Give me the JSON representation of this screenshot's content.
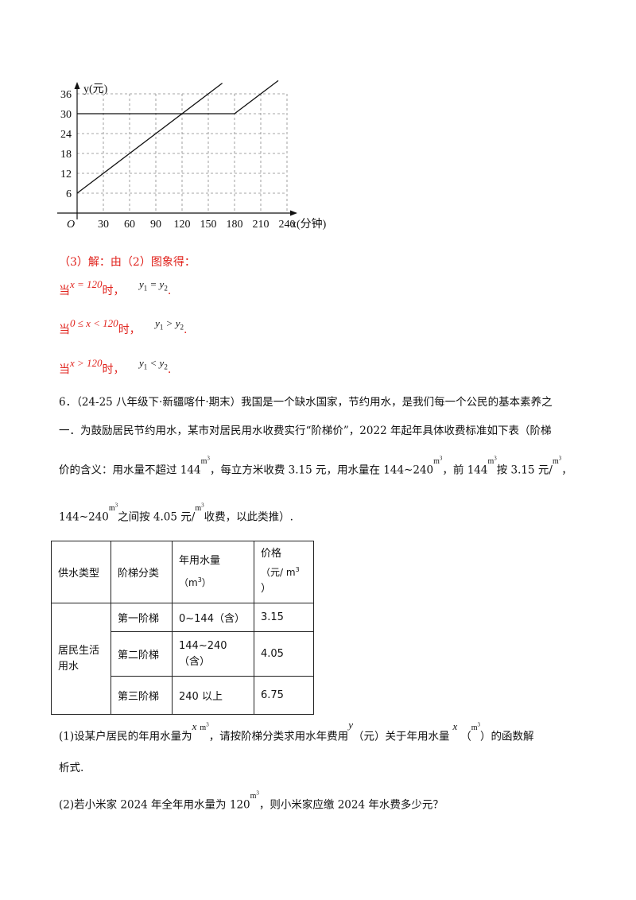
{
  "chart_data": {
    "type": "line",
    "ylabel": "y(元)",
    "xlabel": "x(分钟)",
    "origin_label": "O",
    "x_ticks": [
      30,
      60,
      90,
      120,
      150,
      180,
      210,
      240
    ],
    "y_ticks": [
      6,
      12,
      18,
      24,
      30,
      36
    ],
    "xlim": [
      0,
      240
    ],
    "ylim": [
      0,
      36
    ],
    "grid": true,
    "series": [
      {
        "name": "y2",
        "name_base": "y",
        "name_sub": "2",
        "x": [
          0,
          166
        ],
        "y": [
          6,
          39.2
        ]
      },
      {
        "name": "y1",
        "name_base": "y",
        "name_sub": "1",
        "x": [
          0,
          180,
          230
        ],
        "y": [
          30,
          30,
          40
        ]
      }
    ]
  },
  "solution": {
    "heading": "（3）解：由（2）图象得：",
    "dang": "当",
    "shi": "时，",
    "period": ".",
    "cases": [
      {
        "cond": "x = 120",
        "result": "y1 = y2"
      },
      {
        "cond": "0 ≤ x < 120",
        "result": "y1 > y2"
      },
      {
        "cond": "x > 120",
        "result": "y1 < y2"
      }
    ]
  },
  "problem6": {
    "line1": "6．（24-25 八年级下·新疆喀什·期末）我国是一个缺水国家，节约用水，是我们每一个公民的基本素养之",
    "line2": "一．为鼓励居民节约用水，某市对居民用水收费实行“阶梯价”，2022 年起年具体收费标准如下表（阶梯",
    "line3": {
      "a": "价的含义：用水量不超过 144",
      "b": "，每立方米收费 3.15 元，用水量在 144~240",
      "c": "，前 144",
      "d": "按  3.15 元/",
      "e": "，"
    },
    "line4": {
      "a": "144~240",
      "b": "之间按 4.05 元/",
      "c": "收费，以此类推）."
    },
    "unit": "m",
    "cube": "3",
    "table": {
      "h_type": "供水类型",
      "h_tier": "阶梯分类",
      "h_usage": "年用水量",
      "h_usage_unit_open": "（m",
      "h_usage_unit_close": "）",
      "h_price": "价格",
      "h_price_unit_open": "（元/ m",
      "h_price_unit_close": "）",
      "category": "居民生活用水",
      "rows": [
        {
          "tier": "第一阶梯",
          "usage": "0~144（含）",
          "usage2": "",
          "price": "3.15"
        },
        {
          "tier": "第二阶梯",
          "usage": "144~240",
          "usage2": "（含）",
          "price": "4.05"
        },
        {
          "tier": "第三阶梯",
          "usage": "240 以上",
          "usage2": "",
          "price": "6.75"
        }
      ]
    },
    "q1": {
      "a": "(1)设某户居民的年用水量为",
      "x": "x",
      "b": "，请按阶梯分类求用水年费用",
      "y": "y",
      "c": "（元）关于年用水量",
      "d": "（",
      "e": "）的函数解",
      "f": "析式."
    },
    "q2": {
      "a": "(2)若小米家 2024 年全年用水量为 120",
      "b": "，则小米家应缴 2024 年水费多少元？"
    }
  }
}
